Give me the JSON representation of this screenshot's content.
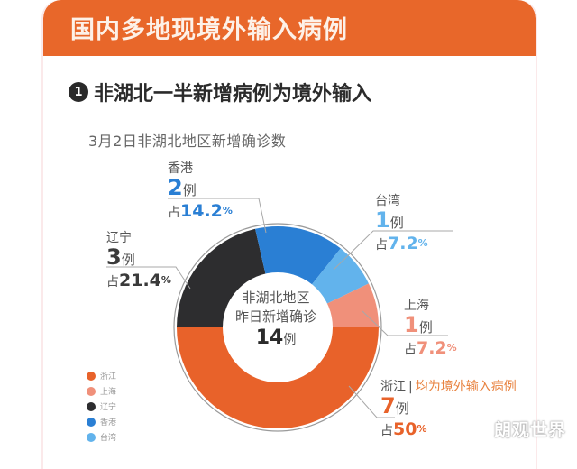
{
  "header": {
    "title": "国内多地现境外输入病例"
  },
  "section": {
    "number": "1",
    "title": "非湖北一半新增病例为境外输入"
  },
  "subtitle": "3月2日非湖北地区新增确诊数",
  "center": {
    "line1": "非湖北地区",
    "line2": "昨日新增确诊",
    "total": "14",
    "unit": "例"
  },
  "labels": {
    "hongkong": {
      "name": "香港",
      "count": "2",
      "unit": "例",
      "pct_prefix": "占",
      "pct": "14.2",
      "pct_sign": "%"
    },
    "taiwan": {
      "name": "台湾",
      "count": "1",
      "unit": "例",
      "pct_prefix": "占",
      "pct": "7.2",
      "pct_sign": "%"
    },
    "liaoning": {
      "name": "辽宁",
      "count": "3",
      "unit": "例",
      "pct_prefix": "占",
      "pct": "21.4",
      "pct_sign": "%"
    },
    "shanghai": {
      "name": "上海",
      "count": "1",
      "unit": "例",
      "pct_prefix": "占",
      "pct": "7.2",
      "pct_sign": "%"
    },
    "zhejiang": {
      "name": "浙江",
      "separator": "|",
      "note": "均为境外输入病例",
      "count": "7",
      "unit": "例",
      "pct_prefix": "占",
      "pct": "50",
      "pct_sign": "%"
    }
  },
  "legend": [
    {
      "label": "浙江",
      "color": "#e8622a"
    },
    {
      "label": "上海",
      "color": "#f0907a"
    },
    {
      "label": "辽宁",
      "color": "#2d2d2f"
    },
    {
      "label": "香港",
      "color": "#2a7fd4"
    },
    {
      "label": "台湾",
      "color": "#62b3ec"
    }
  ],
  "watermark": "朗观世界",
  "chart_data": {
    "type": "pie",
    "variant": "donut",
    "title": "3月2日非湖北地区新增确诊数",
    "center_text": "非湖北地区 昨日新增确诊 14例",
    "categories": [
      "浙江",
      "上海",
      "辽宁",
      "香港",
      "台湾"
    ],
    "values": [
      7,
      1,
      3,
      2,
      1
    ],
    "percentages": [
      50,
      7.2,
      21.4,
      14.2,
      7.2
    ],
    "colors": [
      "#e8622a",
      "#f0907a",
      "#2d2d2f",
      "#2a7fd4",
      "#62b3ec"
    ],
    "total": 14,
    "annotations": [
      "浙江 | 均为境外输入病例"
    ],
    "legend_position": "bottom-left"
  }
}
